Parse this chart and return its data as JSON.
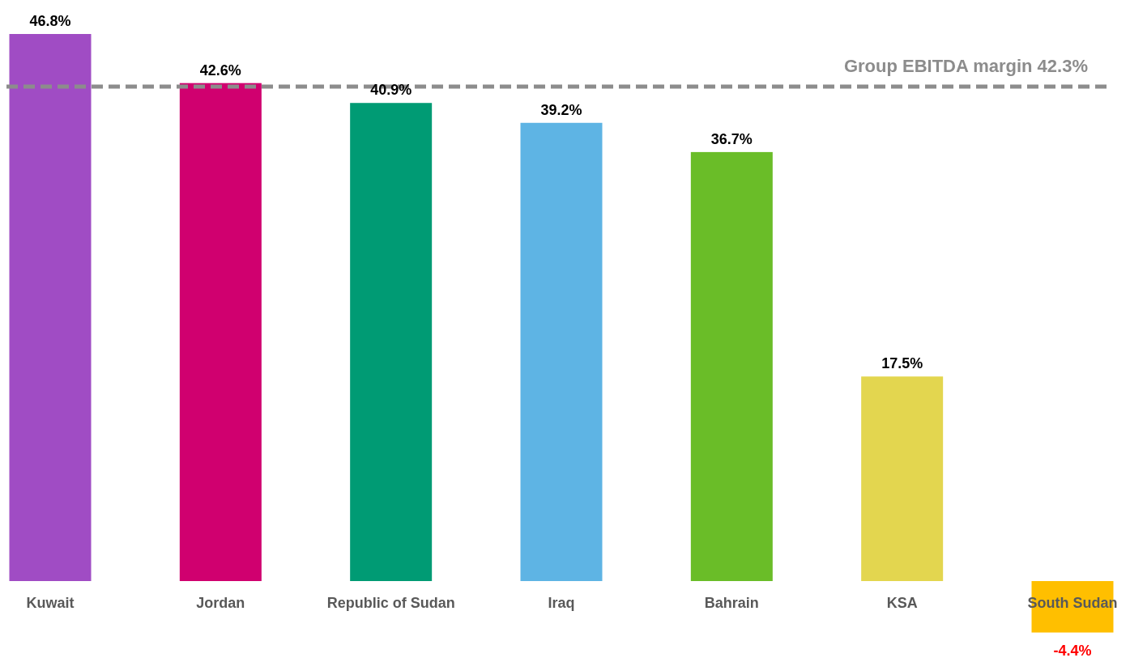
{
  "chart_data": {
    "type": "bar",
    "categories": [
      "Kuwait",
      "Jordan",
      "Republic of Sudan",
      "Iraq",
      "Bahrain",
      "KSA",
      "South Sudan"
    ],
    "values": [
      46.8,
      42.6,
      40.9,
      39.2,
      36.7,
      17.5,
      -4.4
    ],
    "colors": [
      "#a04cc4",
      "#d0006f",
      "#009b74",
      "#5eb4e4",
      "#6abd28",
      "#e3d64f",
      "#ffbf00"
    ],
    "value_labels": [
      "46.8%",
      "42.6%",
      "40.9%",
      "39.2%",
      "36.7%",
      "17.5%",
      "-4.4%"
    ],
    "ref_lines": [
      {
        "axis": "y",
        "value": 42.3,
        "label": "Group EBITDA margin  42.3%",
        "color": "#8c8c8c",
        "line_style": "dashed"
      }
    ]
  }
}
